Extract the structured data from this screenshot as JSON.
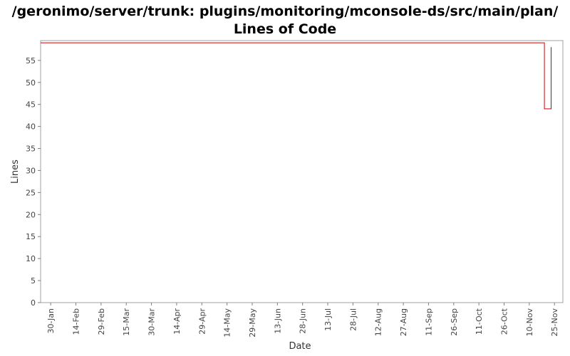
{
  "chart_data": {
    "type": "line",
    "title_lines": [
      "/geronimo/server/trunk: plugins/monitoring/mconsole-ds/src/main/plan/",
      "Lines of Code"
    ],
    "xlabel": "Date",
    "ylabel": "Lines",
    "x_ticks": [
      "30-Jan",
      "14-Feb",
      "29-Feb",
      "15-Mar",
      "30-Mar",
      "14-Apr",
      "29-Apr",
      "14-May",
      "29-May",
      "13-Jun",
      "28-Jun",
      "13-Jul",
      "28-Jul",
      "12-Aug",
      "27-Aug",
      "11-Sep",
      "26-Sep",
      "11-Oct",
      "26-Oct",
      "10-Nov",
      "25-Nov"
    ],
    "y_ticks": [
      0,
      5,
      10,
      15,
      20,
      25,
      30,
      35,
      40,
      45,
      50,
      55
    ],
    "ylim": [
      0,
      59.5
    ],
    "xlim": [
      "2008-01-24",
      "2008-11-30"
    ],
    "grid": false,
    "legend": "none",
    "series": [
      {
        "color": "#cc0000",
        "step": true,
        "points": [
          {
            "x": "2008-01-24",
            "y": 59
          },
          {
            "x": "2008-11-19",
            "y": 44
          },
          {
            "x": "2008-11-23",
            "y": 58
          }
        ]
      }
    ]
  }
}
